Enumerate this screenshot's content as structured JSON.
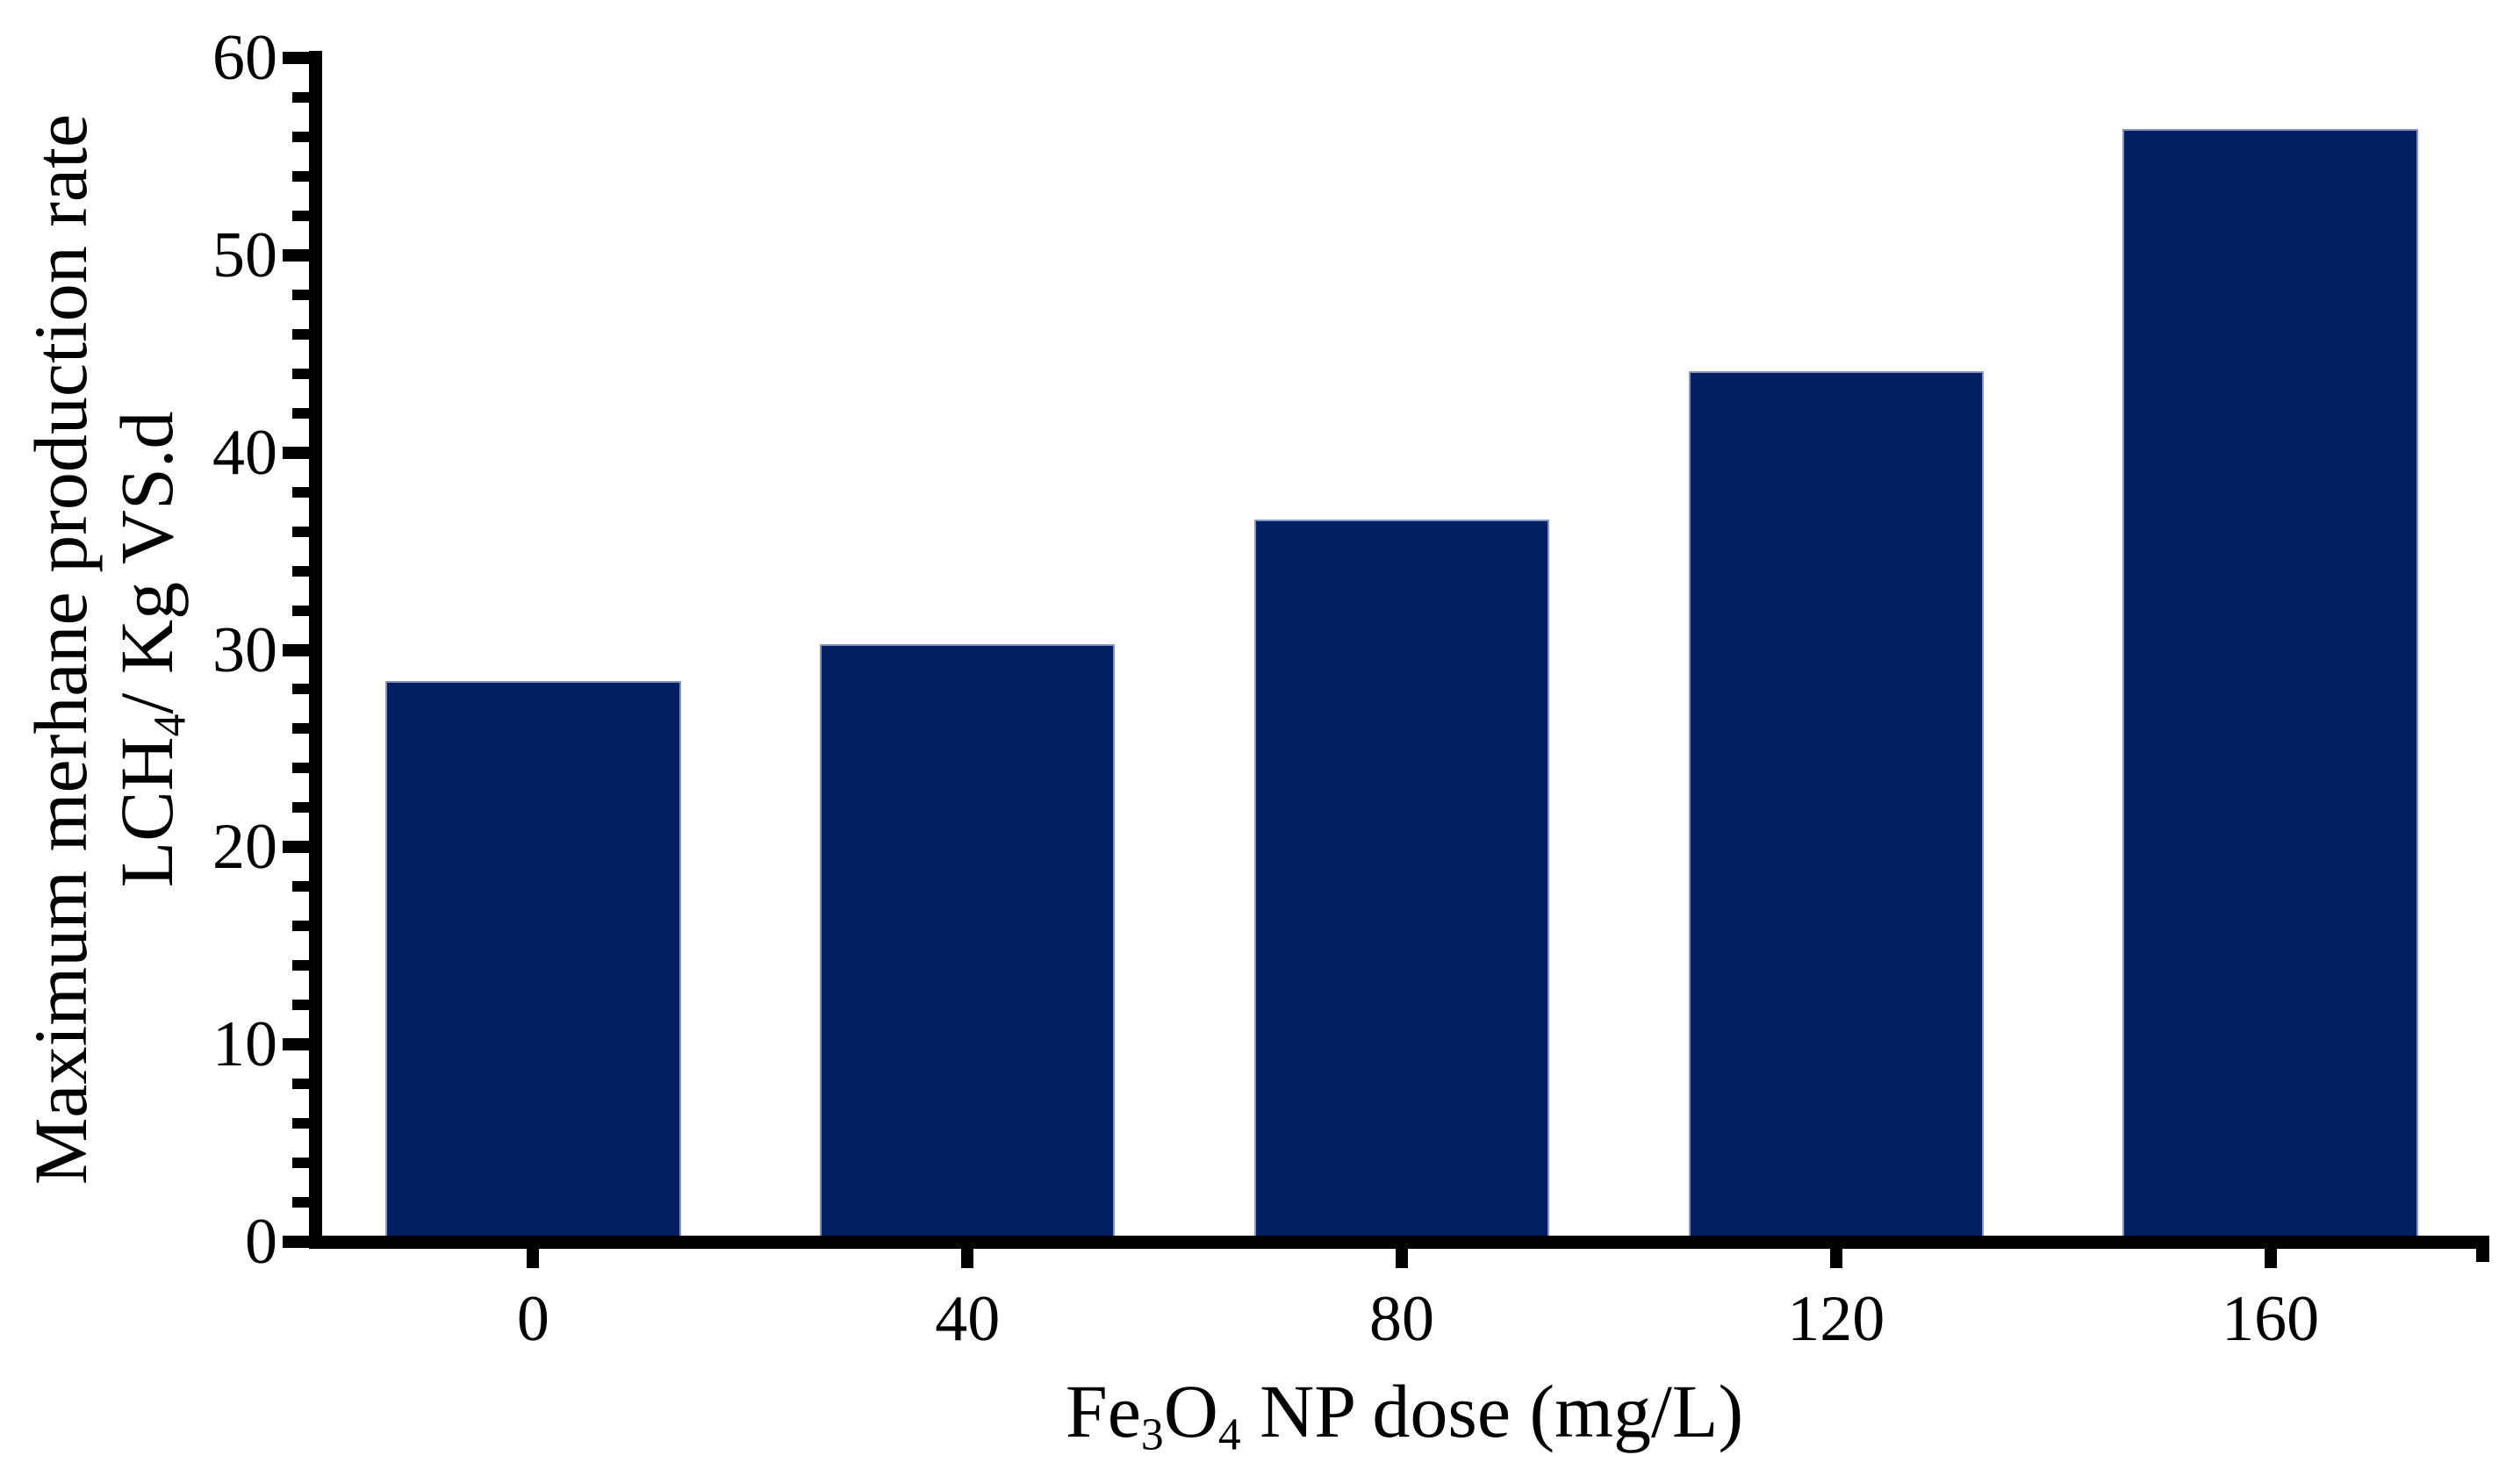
{
  "chart_data": {
    "type": "bar",
    "categories": [
      "0",
      "40",
      "80",
      "120",
      "160"
    ],
    "values": [
      28.4,
      30.3,
      36.6,
      44.1,
      56.4
    ],
    "xlabel": "Fe₃O₄ NP dose (mg/L)",
    "ylabel": "Maximum merhane production rate LCH₄/ Kg VS.d",
    "ylabel_lines": [
      "Maximum merhane production rate",
      "LCH₄/ Kg VS.d"
    ],
    "ylim": [
      0,
      60
    ],
    "yticks": [
      0,
      10,
      20,
      30,
      40,
      50,
      60
    ],
    "y_minor_tick_step": 2,
    "grid": false,
    "legend_position": "none",
    "background": "#ffffff",
    "bar_color": "#011f62",
    "bar_edge_color": "#8696bf",
    "axis_color": "#000000"
  }
}
